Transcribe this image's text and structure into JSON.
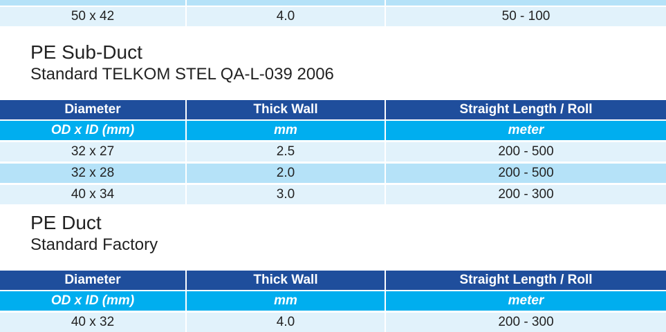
{
  "top_table": {
    "rows": [
      [
        "50 x 42",
        "4.0",
        "50 - 100"
      ]
    ]
  },
  "sections": [
    {
      "title": "PE Sub-Duct",
      "subtitle": "Standard TELKOM STEL QA-L-039 2006",
      "table": {
        "header": [
          "Diameter",
          "Thick Wall",
          "Straight Length / Roll"
        ],
        "units": [
          "OD x ID (mm)",
          "mm",
          "meter"
        ],
        "rows": [
          [
            "32 x 27",
            "2.5",
            "200 - 500"
          ],
          [
            "32 x 28",
            "2.0",
            "200 - 500"
          ],
          [
            "40 x 34",
            "3.0",
            "200 - 300"
          ]
        ]
      }
    },
    {
      "title": "PE Duct",
      "subtitle": "Standard Factory",
      "table": {
        "header": [
          "Diameter",
          "Thick Wall",
          "Straight Length / Roll"
        ],
        "units": [
          "OD x ID (mm)",
          "mm",
          "meter"
        ],
        "rows": [
          [
            "40 x 32",
            "4.0",
            "200 - 300"
          ]
        ]
      }
    }
  ]
}
